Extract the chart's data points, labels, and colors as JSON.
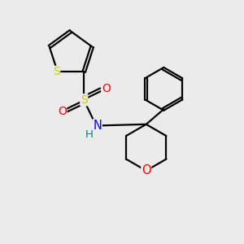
{
  "background_color": "#ebebeb",
  "bond_color": "#000000",
  "S_color": "#cccc00",
  "O_color": "#ff0000",
  "N_color": "#0000ff",
  "H_color": "#008080",
  "figsize": [
    3.0,
    3.0
  ],
  "dpi": 100,
  "xlim": [
    0,
    10
  ],
  "ylim": [
    0,
    10
  ]
}
